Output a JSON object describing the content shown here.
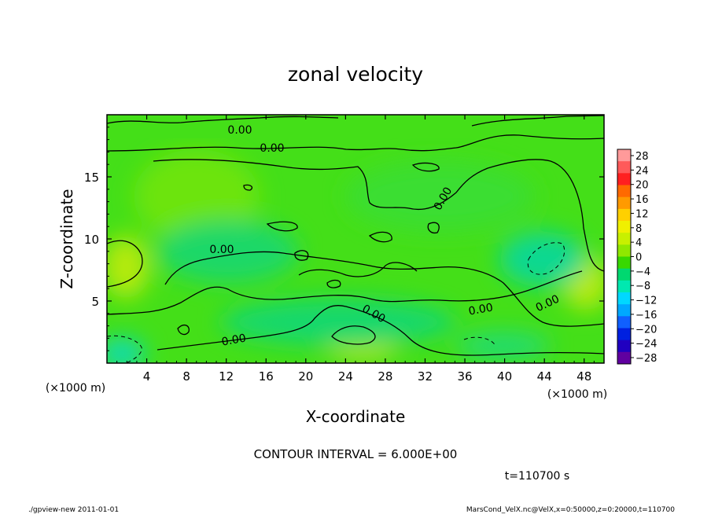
{
  "chart_data": {
    "type": "heatmap",
    "title": "zonal velocity",
    "xlabel": "X-coordinate",
    "ylabel": "Z-coordinate",
    "x_unit": "(×1000 m)",
    "y_unit": "(×1000 m)",
    "xlim": [
      0,
      50
    ],
    "ylim": [
      0,
      20
    ],
    "x_ticks": [
      4,
      8,
      12,
      16,
      20,
      24,
      28,
      32,
      36,
      40,
      44,
      48
    ],
    "y_ticks": [
      5,
      10,
      15
    ],
    "colorbar": {
      "labels": [
        28,
        24,
        20,
        16,
        12,
        8,
        4,
        0,
        -4,
        -8,
        -12,
        -16,
        -20,
        -24,
        -28
      ],
      "colors": [
        "#ff9a9a",
        "#ff5a5a",
        "#ff2020",
        "#ff6a00",
        "#ff9a00",
        "#ffd000",
        "#f0f000",
        "#c8f000",
        "#90e800",
        "#38d800",
        "#00d870",
        "#00e8b0",
        "#00d8ff",
        "#00a8ff",
        "#1060ff",
        "#0020e0",
        "#2000c0",
        "#6000a0"
      ]
    },
    "contour_labels": [
      "0.00",
      "0.00",
      "0.00",
      "0.00",
      "0.00",
      "0.00",
      "0.00",
      "0.00"
    ],
    "contour_interval_text": "CONTOUR INTERVAL = 6.000E+00",
    "time_text": "t=110700 s"
  },
  "footer": {
    "left": "./gpview-new  2011-01-01",
    "right": "MarsCond_VelX.nc@VelX,x=0:50000,z=0:20000,t=110700"
  }
}
